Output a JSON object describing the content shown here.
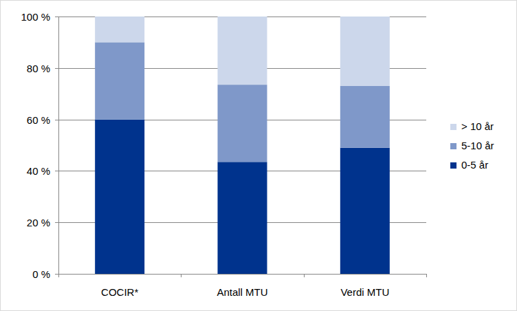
{
  "chart_data": {
    "type": "bar",
    "stacked": true,
    "grid": true,
    "legend": "right",
    "categories": [
      "COCIR*",
      "Antall MTU",
      "Verdi MTU"
    ],
    "series": [
      {
        "name": "0-5 år",
        "color": "#00338d",
        "values": [
          60,
          43.5,
          49
        ]
      },
      {
        "name": "5-10 år",
        "color": "#7f98c9",
        "values": [
          30,
          30,
          24
        ]
      },
      {
        "name": "> 10 år",
        "color": "#ccd7eb",
        "values": [
          10,
          26.5,
          27
        ]
      }
    ],
    "ylim": [
      0,
      100
    ],
    "yticks": [
      {
        "value": 0,
        "label": "0 %"
      },
      {
        "value": 20,
        "label": "20 %"
      },
      {
        "value": 40,
        "label": "40 %"
      },
      {
        "value": 60,
        "label": "60 %"
      },
      {
        "value": 80,
        "label": "80 %"
      },
      {
        "value": 100,
        "label": "100 %"
      }
    ]
  }
}
